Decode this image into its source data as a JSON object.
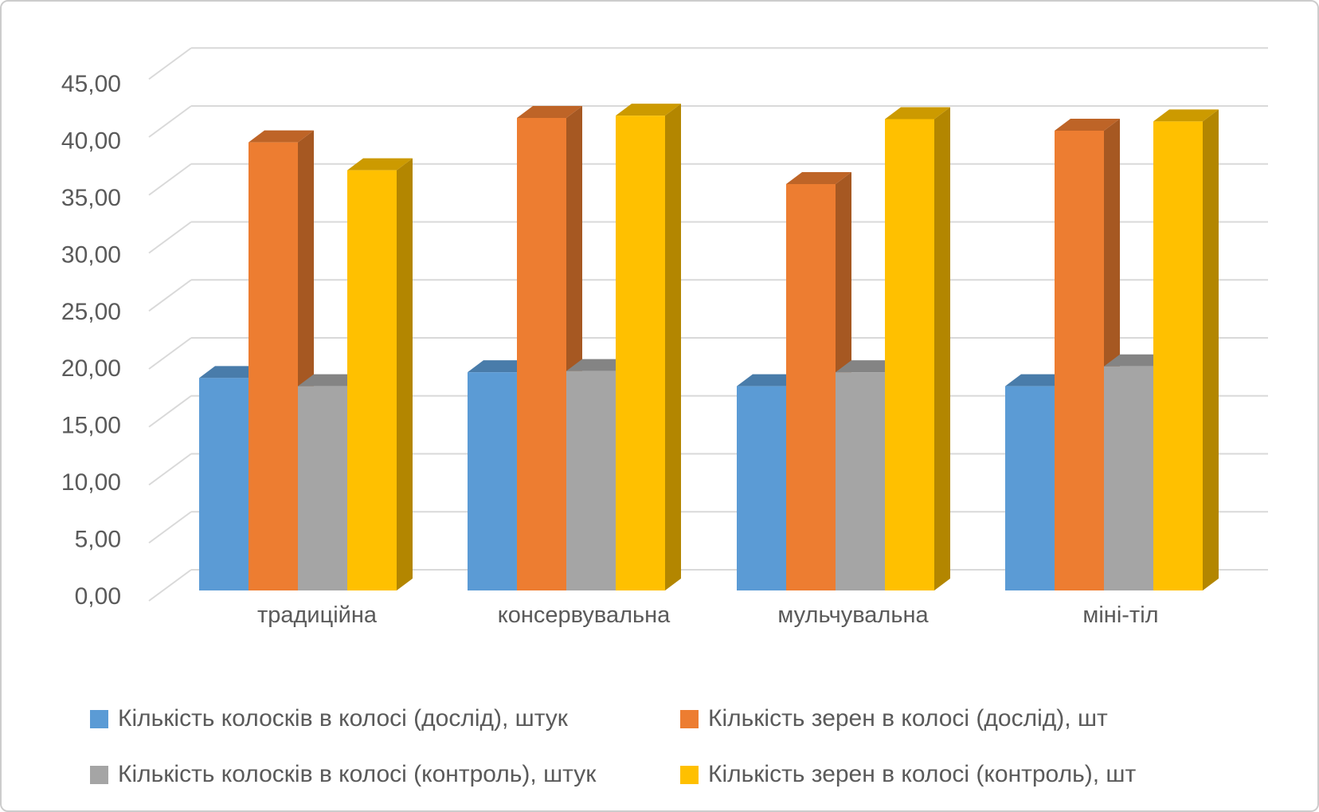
{
  "chart_data": {
    "type": "bar",
    "variant": "3d-clustered-column",
    "title": "",
    "categories": [
      "традиційна",
      "консервувальна",
      "мульчувальна",
      "міні-тіл"
    ],
    "series": [
      {
        "name": "Кількість колосків в колосі (дослід), штук",
        "color": "#5B9BD5",
        "values": [
          18.3,
          18.8,
          17.6,
          17.6
        ]
      },
      {
        "name": "Кількість зерен в колосі (дослід), шт",
        "color": "#ED7D31",
        "values": [
          38.6,
          40.7,
          35.0,
          39.6
        ]
      },
      {
        "name": "Кількість колосків в колосі (контроль), штук",
        "color": "#A5A5A5",
        "values": [
          17.6,
          18.9,
          18.8,
          19.3
        ]
      },
      {
        "name": "Кількість зерен в колосі (контроль), шт",
        "color": "#FFC000",
        "values": [
          36.2,
          40.9,
          40.6,
          40.4
        ]
      }
    ],
    "y_axis": {
      "min": 0,
      "max": 45,
      "step": 5,
      "tick_labels": [
        "0,00",
        "5,00",
        "10,00",
        "15,00",
        "20,00",
        "25,00",
        "30,00",
        "35,00",
        "40,00",
        "45,00"
      ]
    },
    "grid": true,
    "gridline_color": "#D9D9D9",
    "text_color": "#5A5A5A",
    "legend_position": "bottom"
  }
}
